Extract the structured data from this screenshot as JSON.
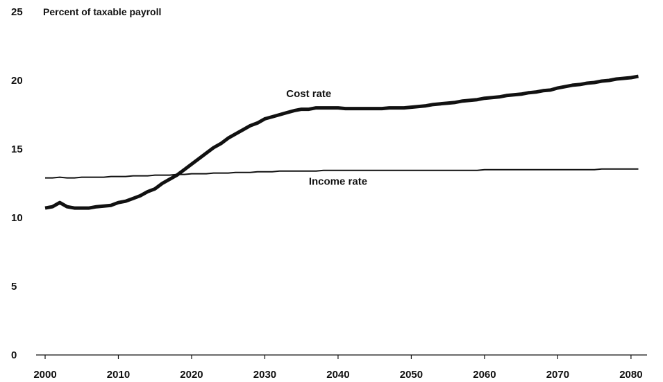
{
  "chart_data": {
    "type": "line",
    "title": "Percent of taxable payroll",
    "xlabel": "",
    "ylabel": "",
    "xlim": [
      2000,
      2082
    ],
    "ylim": [
      0,
      25
    ],
    "x_ticks": [
      2000,
      2010,
      2020,
      2030,
      2040,
      2050,
      2060,
      2070,
      2080
    ],
    "y_ticks": [
      0,
      5,
      10,
      15,
      20,
      25
    ],
    "grid": false,
    "legend": "none",
    "series": [
      {
        "name": "Cost rate",
        "color": "#111111",
        "x": [
          2000,
          2001,
          2002,
          2003,
          2004,
          2005,
          2006,
          2007,
          2008,
          2009,
          2010,
          2011,
          2012,
          2013,
          2014,
          2015,
          2016,
          2017,
          2018,
          2019,
          2020,
          2021,
          2022,
          2023,
          2024,
          2025,
          2026,
          2027,
          2028,
          2029,
          2030,
          2031,
          2032,
          2033,
          2034,
          2035,
          2036,
          2037,
          2038,
          2039,
          2040,
          2041,
          2042,
          2043,
          2044,
          2045,
          2046,
          2047,
          2048,
          2049,
          2050,
          2051,
          2052,
          2053,
          2054,
          2055,
          2056,
          2057,
          2058,
          2059,
          2060,
          2061,
          2062,
          2063,
          2064,
          2065,
          2066,
          2067,
          2068,
          2069,
          2070,
          2071,
          2072,
          2073,
          2074,
          2075,
          2076,
          2077,
          2078,
          2079,
          2080,
          2081
        ],
        "values": [
          10.7,
          10.8,
          11.1,
          10.8,
          10.7,
          10.7,
          10.7,
          10.8,
          10.85,
          10.9,
          11.1,
          11.2,
          11.4,
          11.6,
          11.9,
          12.1,
          12.5,
          12.8,
          13.1,
          13.5,
          13.9,
          14.3,
          14.7,
          15.1,
          15.4,
          15.8,
          16.1,
          16.4,
          16.7,
          16.9,
          17.2,
          17.35,
          17.5,
          17.65,
          17.8,
          17.9,
          17.9,
          18.0,
          18.0,
          18.0,
          18.0,
          17.95,
          17.95,
          17.95,
          17.95,
          17.95,
          17.95,
          18.0,
          18.0,
          18.0,
          18.05,
          18.1,
          18.15,
          18.25,
          18.3,
          18.35,
          18.4,
          18.5,
          18.55,
          18.6,
          18.7,
          18.75,
          18.8,
          18.9,
          18.95,
          19.0,
          19.1,
          19.15,
          19.25,
          19.3,
          19.45,
          19.55,
          19.65,
          19.7,
          19.8,
          19.85,
          19.95,
          20.0,
          20.1,
          20.15,
          20.2,
          20.3
        ]
      },
      {
        "name": "Income rate",
        "color": "#111111",
        "x": [
          2000,
          2001,
          2002,
          2003,
          2004,
          2005,
          2006,
          2007,
          2008,
          2009,
          2010,
          2011,
          2012,
          2013,
          2014,
          2015,
          2016,
          2017,
          2018,
          2019,
          2020,
          2021,
          2022,
          2023,
          2024,
          2025,
          2026,
          2027,
          2028,
          2029,
          2030,
          2031,
          2032,
          2033,
          2034,
          2035,
          2036,
          2037,
          2038,
          2039,
          2040,
          2041,
          2042,
          2043,
          2044,
          2045,
          2046,
          2047,
          2048,
          2049,
          2050,
          2051,
          2052,
          2053,
          2054,
          2055,
          2056,
          2057,
          2058,
          2059,
          2060,
          2061,
          2062,
          2063,
          2064,
          2065,
          2066,
          2067,
          2068,
          2069,
          2070,
          2071,
          2072,
          2073,
          2074,
          2075,
          2076,
          2077,
          2078,
          2079,
          2080,
          2081
        ],
        "values": [
          12.9,
          12.9,
          12.95,
          12.9,
          12.9,
          12.95,
          12.95,
          12.95,
          12.95,
          13.0,
          13.0,
          13.0,
          13.05,
          13.05,
          13.05,
          13.1,
          13.1,
          13.1,
          13.15,
          13.15,
          13.2,
          13.2,
          13.2,
          13.25,
          13.25,
          13.25,
          13.3,
          13.3,
          13.3,
          13.35,
          13.35,
          13.35,
          13.4,
          13.4,
          13.4,
          13.4,
          13.4,
          13.4,
          13.45,
          13.45,
          13.45,
          13.45,
          13.45,
          13.45,
          13.45,
          13.45,
          13.45,
          13.45,
          13.45,
          13.45,
          13.45,
          13.45,
          13.45,
          13.45,
          13.45,
          13.45,
          13.45,
          13.45,
          13.45,
          13.45,
          13.5,
          13.5,
          13.5,
          13.5,
          13.5,
          13.5,
          13.5,
          13.5,
          13.5,
          13.5,
          13.5,
          13.5,
          13.5,
          13.5,
          13.5,
          13.5,
          13.55,
          13.55,
          13.55,
          13.55,
          13.55,
          13.55
        ]
      }
    ],
    "annotations": [
      {
        "text": "Cost rate",
        "x": 2036,
        "y": 18.8
      },
      {
        "text": "Income rate",
        "x": 2040,
        "y": 12.4
      }
    ]
  }
}
